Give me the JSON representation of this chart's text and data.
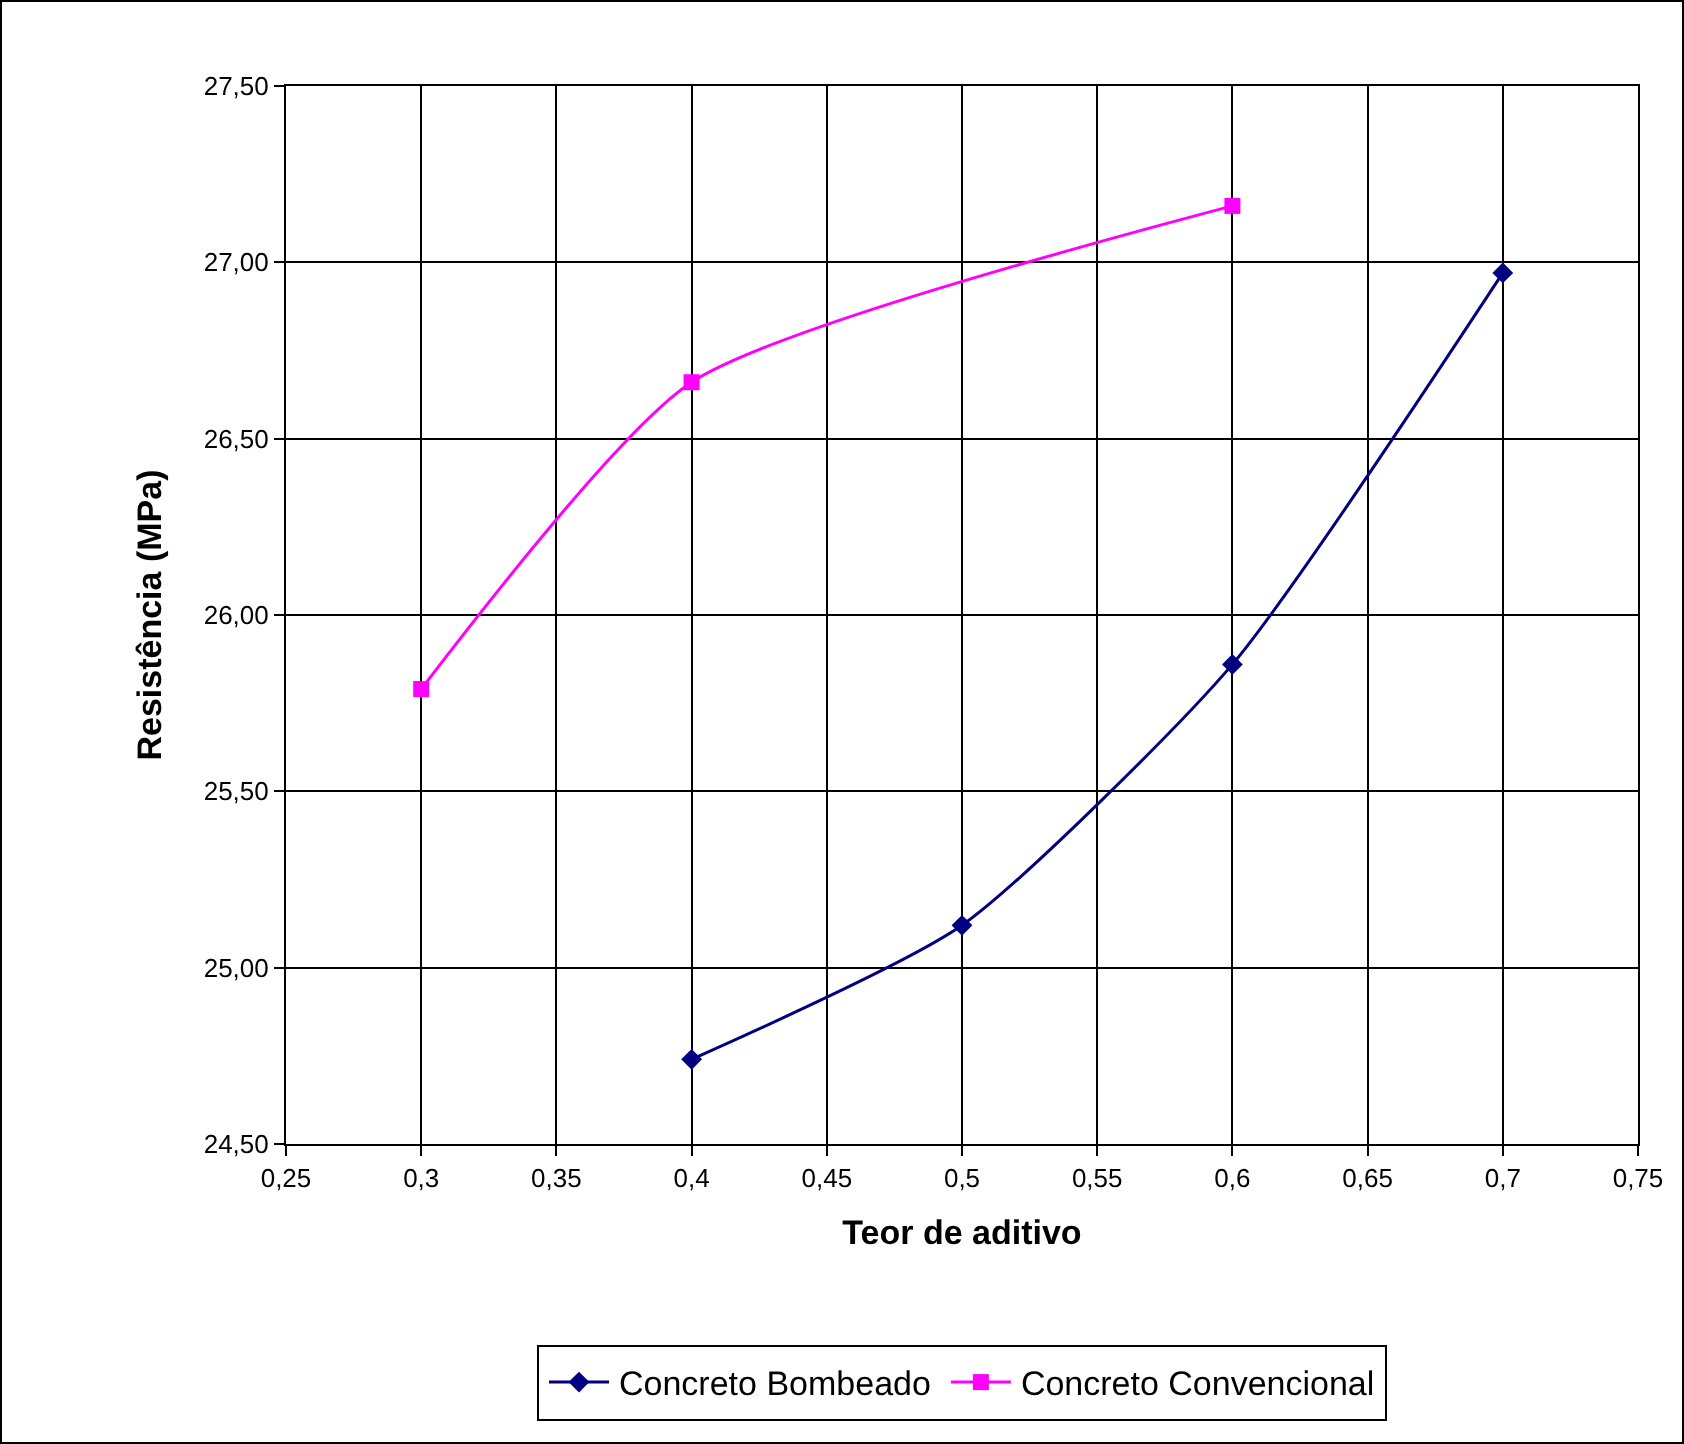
{
  "chart_data": {
    "type": "line",
    "xlabel": "Teor de aditivo",
    "ylabel": "Resistência (MPa)",
    "xlim": [
      0.25,
      0.75
    ],
    "xticks": [
      {
        "value": 0.25,
        "label": "0,25"
      },
      {
        "value": 0.3,
        "label": "0,3"
      },
      {
        "value": 0.35,
        "label": "0,35"
      },
      {
        "value": 0.4,
        "label": "0,4"
      },
      {
        "value": 0.45,
        "label": "0,45"
      },
      {
        "value": 0.5,
        "label": "0,5"
      },
      {
        "value": 0.55,
        "label": "0,55"
      },
      {
        "value": 0.6,
        "label": "0,6"
      },
      {
        "value": 0.65,
        "label": "0,65"
      },
      {
        "value": 0.7,
        "label": "0,7"
      },
      {
        "value": 0.75,
        "label": "0,75"
      }
    ],
    "ylim": [
      24.5,
      27.5
    ],
    "yticks": [
      {
        "value": 24.5,
        "label": "24,50"
      },
      {
        "value": 25,
        "label": "25,00"
      },
      {
        "value": 25.5,
        "label": "25,50"
      },
      {
        "value": 26,
        "label": "26,00"
      },
      {
        "value": 26.5,
        "label": "26,50"
      },
      {
        "value": 27,
        "label": "27,00"
      },
      {
        "value": 27.5,
        "label": "27,50"
      }
    ],
    "grid": true,
    "legend": "bottom",
    "series": [
      {
        "name": "Concreto Bombeado",
        "color": "#000080",
        "marker": "diamond",
        "x": [
          0.4,
          0.5,
          0.6,
          0.7
        ],
        "values": [
          24.74,
          25.12,
          25.86,
          26.97
        ]
      },
      {
        "name": "Concreto Convencional",
        "color": "#ff00ff",
        "marker": "square",
        "x": [
          0.3,
          0.4,
          0.6
        ],
        "values": [
          25.79,
          26.66,
          27.16
        ]
      }
    ]
  }
}
